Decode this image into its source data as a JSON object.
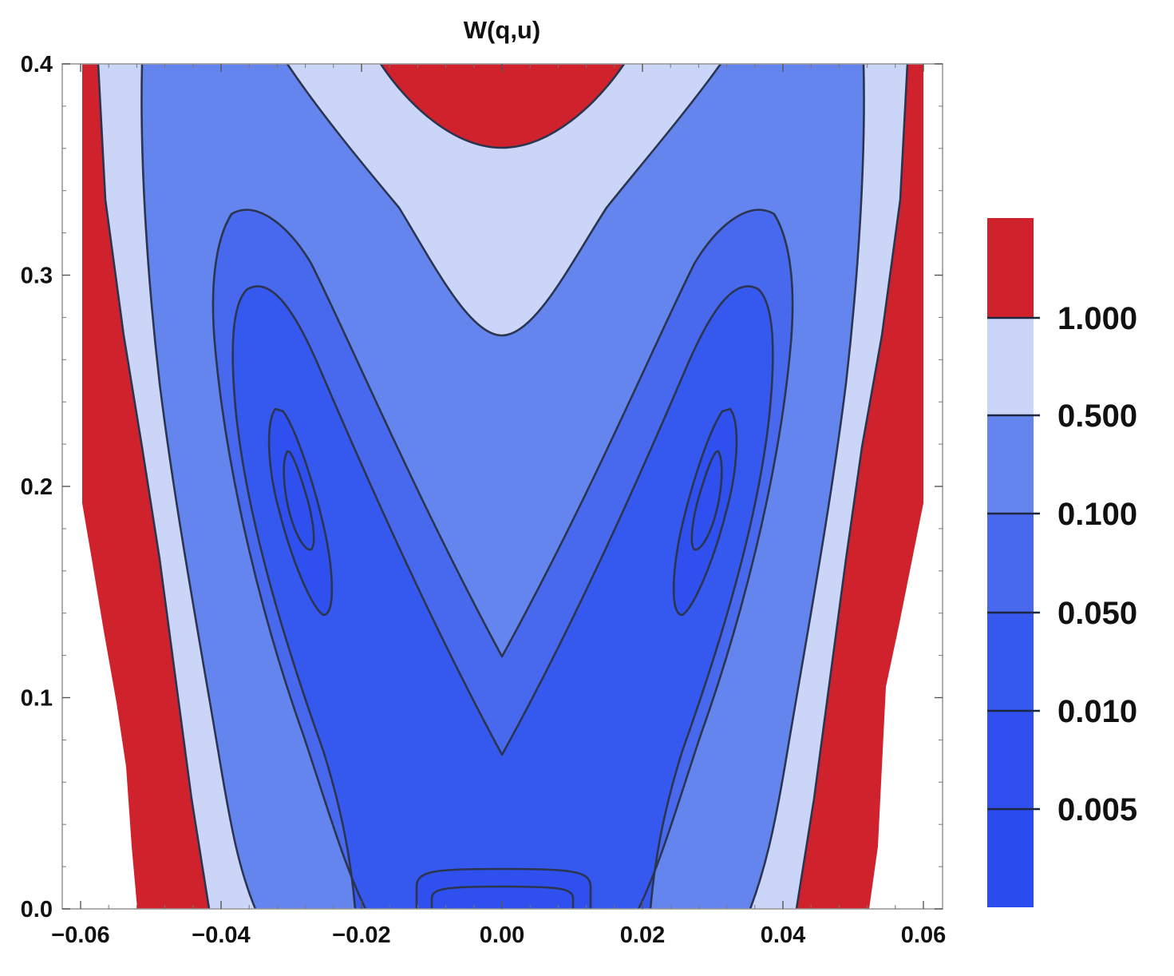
{
  "chart_data": {
    "type": "contour",
    "title": "W(q,u)",
    "xlabel": "",
    "ylabel": "",
    "xlim": [
      -0.06,
      0.06
    ],
    "ylim": [
      0.0,
      0.4
    ],
    "x_ticks": [
      "-0.06",
      "-0.04",
      "-0.02",
      "0.00",
      "0.02",
      "0.04",
      "0.06"
    ],
    "x_tick_values": [
      -0.06,
      -0.04,
      -0.02,
      0.0,
      0.02,
      0.04,
      0.06
    ],
    "y_ticks": [
      "0.0",
      "0.1",
      "0.2",
      "0.3",
      "0.4"
    ],
    "y_tick_values": [
      0.0,
      0.1,
      0.2,
      0.3,
      0.4
    ],
    "contour_levels": [
      0.005,
      0.01,
      0.05,
      0.1,
      0.5,
      1.0
    ],
    "legend": {
      "placement": "right",
      "labels": [
        "1.000",
        "0.500",
        "0.100",
        "0.050",
        "0.010",
        "0.005"
      ],
      "colors": [
        "#d0222d",
        "#cad5f7",
        "#6585ee",
        "#4868ee",
        "#3558ef",
        "#2f50ee"
      ]
    },
    "minima": [
      {
        "q": -0.03,
        "u": 0.2
      },
      {
        "q": 0.03,
        "u": 0.2
      }
    ],
    "saddle": {
      "q": 0.0,
      "u": 0.0
    },
    "grid": false
  }
}
